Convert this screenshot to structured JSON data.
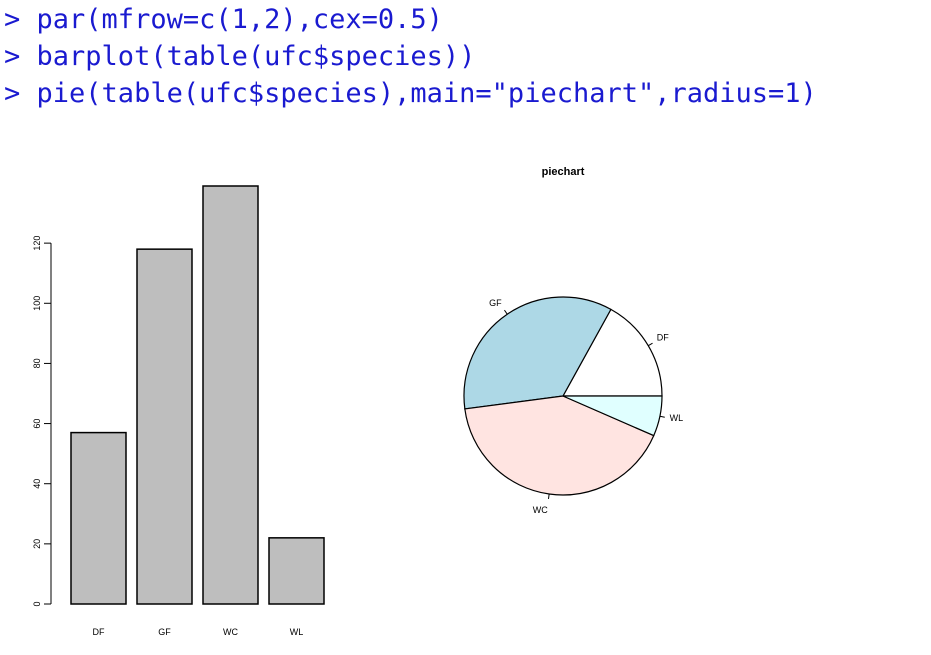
{
  "console": {
    "lines": [
      {
        "prompt": ">",
        "code": "par(mfrow=c(1,2),cex=0.5)"
      },
      {
        "prompt": ">",
        "code": "barplot(table(ufc$species))"
      },
      {
        "prompt": ">",
        "code": "pie(table(ufc$species),main=\"piechart\",radius=1)"
      }
    ]
  },
  "colors": {
    "console_text": "#1a1ad0",
    "bar_fill": "#bebebe",
    "pie_DF": "#ffffff",
    "pie_GF": "#add8e6",
    "pie_WC": "#ffe4e1",
    "pie_WL": "#e0ffff"
  },
  "chart_data": [
    {
      "type": "bar",
      "categories": [
        "DF",
        "GF",
        "WC",
        "WL"
      ],
      "values": [
        57,
        118,
        139,
        22
      ],
      "title": "",
      "xlabel": "",
      "ylabel": "",
      "ylim": [
        0,
        139
      ],
      "yticks": [
        0,
        20,
        40,
        60,
        80,
        100,
        120
      ],
      "grid": false
    },
    {
      "type": "pie",
      "title": "piechart",
      "labels": [
        "DF",
        "GF",
        "WC",
        "WL"
      ],
      "values": [
        57,
        118,
        139,
        22
      ],
      "colors": [
        "#ffffff",
        "#add8e6",
        "#ffe4e1",
        "#e0ffff"
      ],
      "start_angle_deg": 0,
      "direction": "counterclockwise"
    }
  ]
}
